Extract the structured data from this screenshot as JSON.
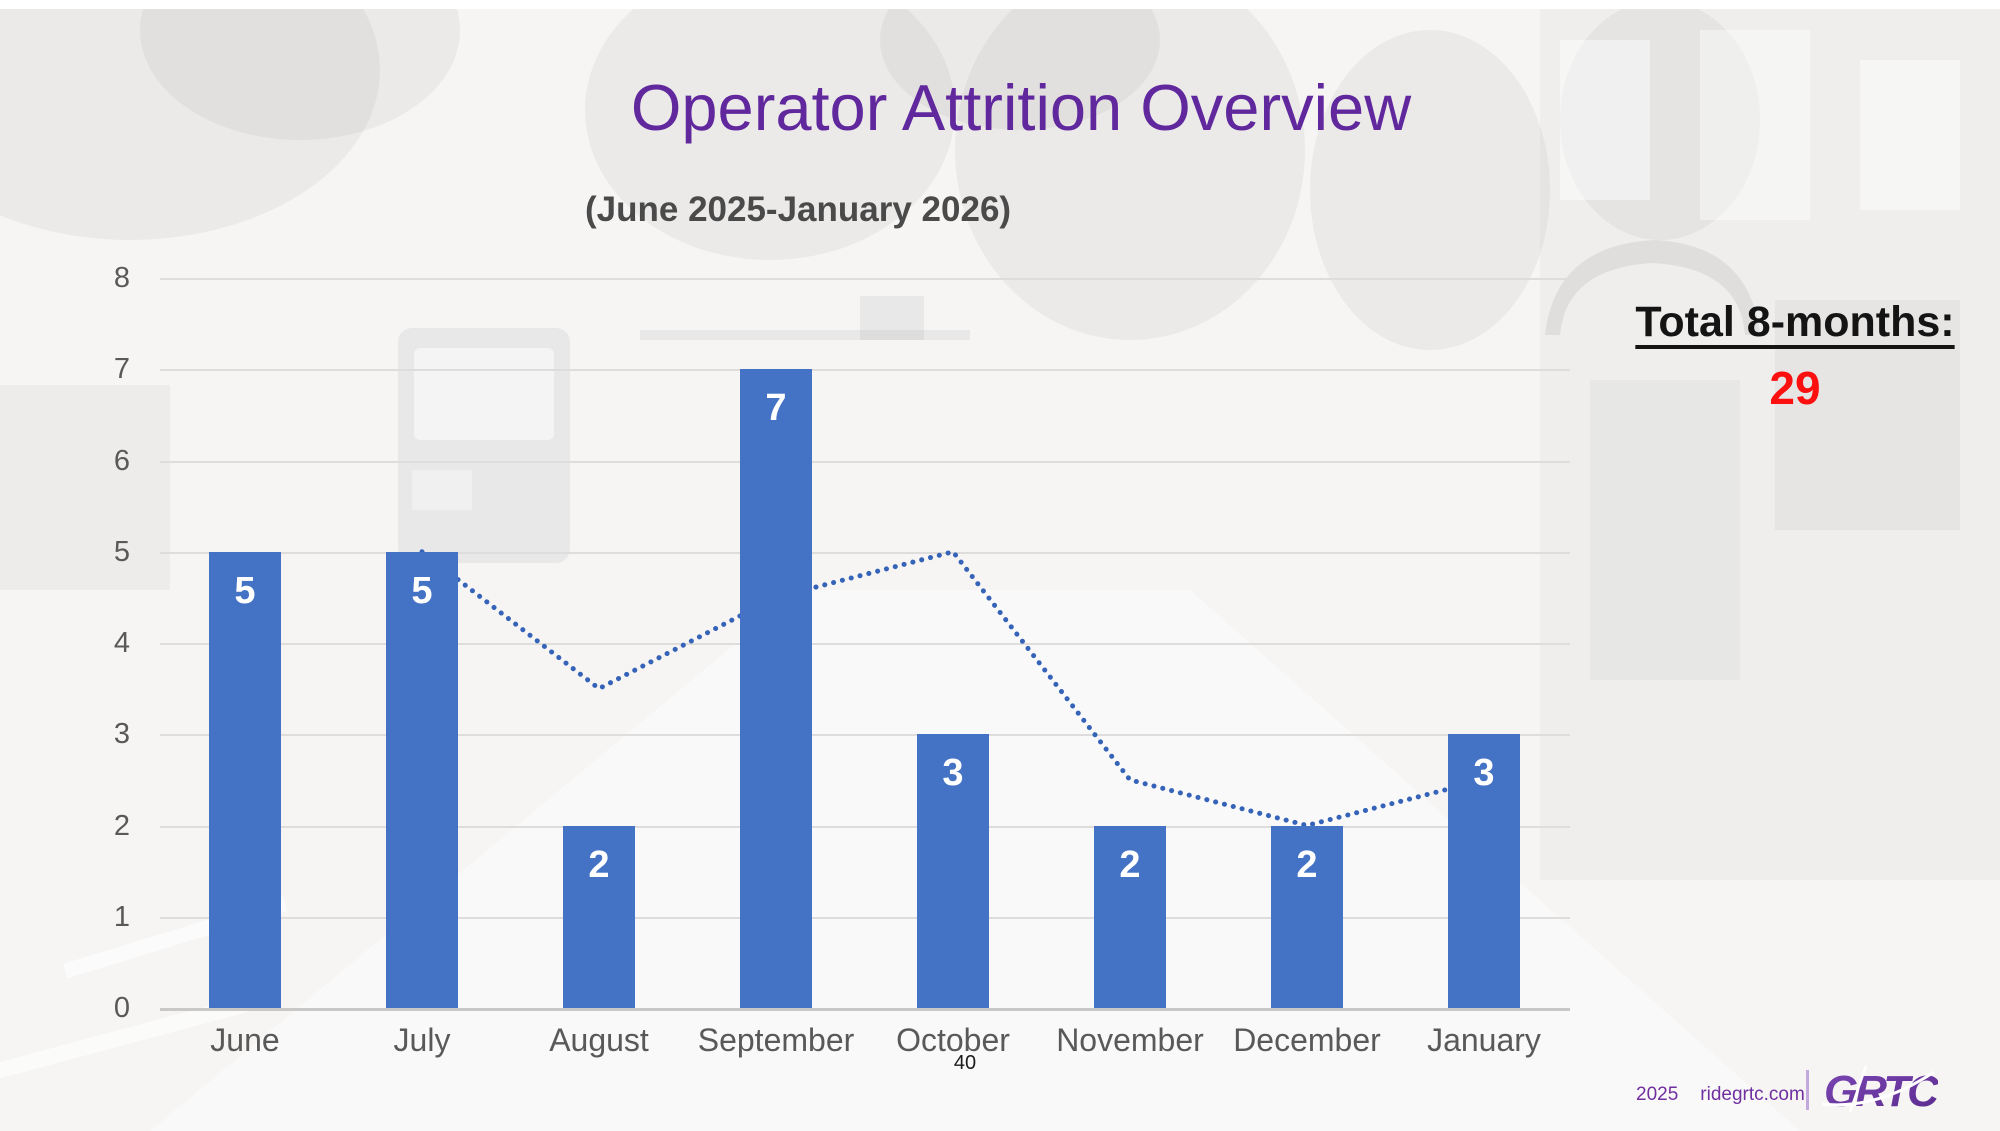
{
  "slide": {
    "title": "Operator Attrition Overview",
    "subtitle": "(June 2025-January 2026)",
    "total_label": "Total 8-months:",
    "total_value": "29",
    "page_number": "40",
    "footer": {
      "year": "2025",
      "website": "ridegrtc.com",
      "logo_text": "GRTC"
    }
  },
  "colors": {
    "title": "#61289e",
    "subtitle": "#4a4a4a",
    "bar": "#4472c4",
    "trend_line": "#3563b8",
    "bar_label": "#ffffff",
    "axis_text": "#595959",
    "gridline": "#dedddb",
    "total_text": "#141414",
    "total_value": "#fb0f0f",
    "footer_purple": "#7030a0",
    "logo_purple_light": "#7b46b4",
    "logo_purple_dark": "#5b2b8e"
  },
  "chart_data": {
    "type": "bar",
    "title": "Operator Attrition Overview",
    "subtitle": "(June 2025-January 2026)",
    "categories": [
      "June",
      "July",
      "August",
      "September",
      "October",
      "November",
      "December",
      "January"
    ],
    "series": [
      {
        "name": "Monthly operator attrition",
        "type": "bar",
        "values": [
          5,
          5,
          2,
          7,
          3,
          2,
          2,
          3
        ]
      },
      {
        "name": "Two-month trend (dotted)",
        "type": "line",
        "values": [
          null,
          5,
          3.5,
          4.5,
          5,
          2.5,
          2,
          2.5
        ]
      }
    ],
    "bar_labels": [
      "5",
      "5",
      "2",
      "7",
      "3",
      "2",
      "2",
      "3"
    ],
    "xlabel": "",
    "ylabel": "",
    "ylim": [
      0,
      8
    ],
    "yticks": [
      0,
      1,
      2,
      3,
      4,
      5,
      6,
      7,
      8
    ],
    "grid": true,
    "legend": false,
    "total_8_months": 29
  }
}
